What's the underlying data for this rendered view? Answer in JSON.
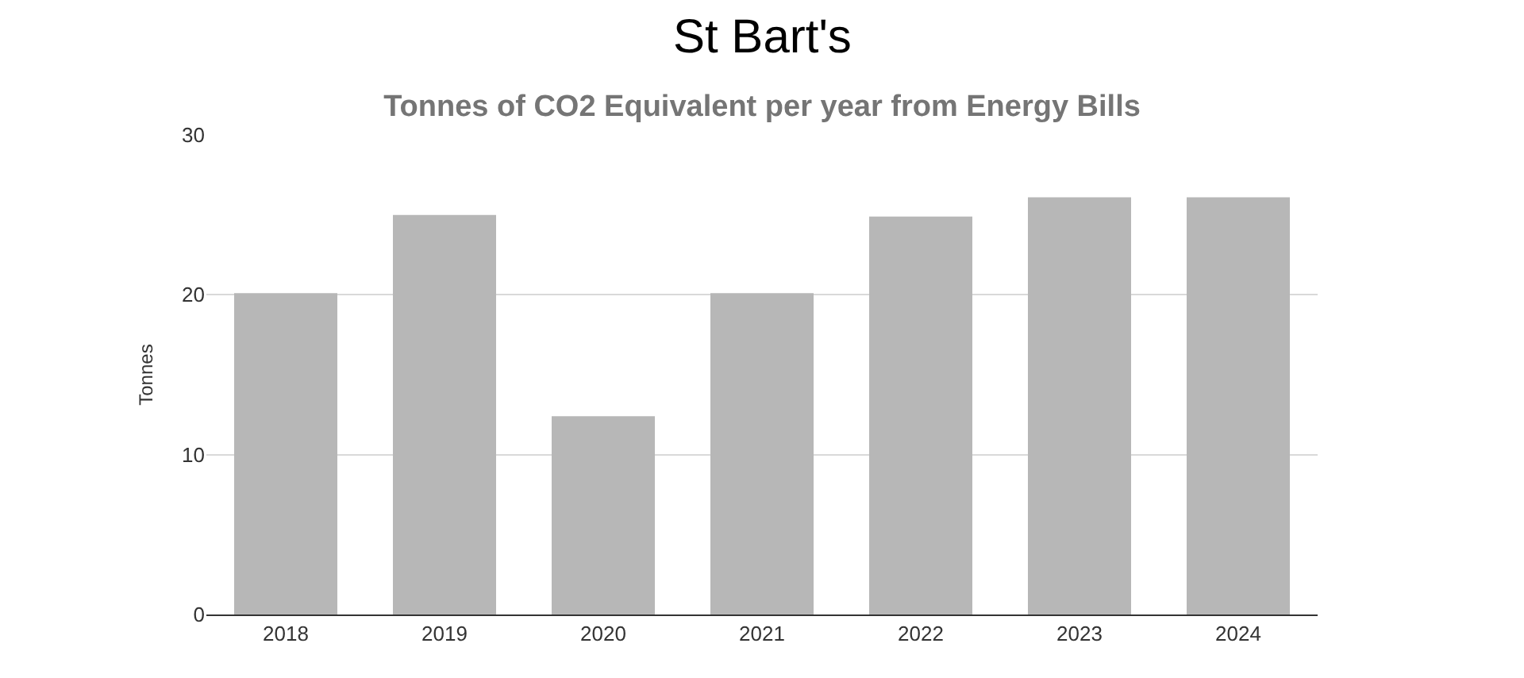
{
  "chart_data": {
    "type": "bar",
    "title": "Tonnes of CO2 Equivalent per year from Energy Bills",
    "ylabel": "Tonnes",
    "annotations": [
      "St Bart's"
    ],
    "categories": [
      "2018",
      "2019",
      "2020",
      "2021",
      "2022",
      "2023",
      "2024"
    ],
    "values": [
      20.1,
      25.0,
      12.4,
      20.1,
      24.9,
      26.1,
      26.1
    ],
    "color": "#b7b7b7",
    "ylim": [
      0,
      30
    ],
    "yticks": [
      0,
      10,
      20,
      30
    ],
    "grid": "y"
  }
}
